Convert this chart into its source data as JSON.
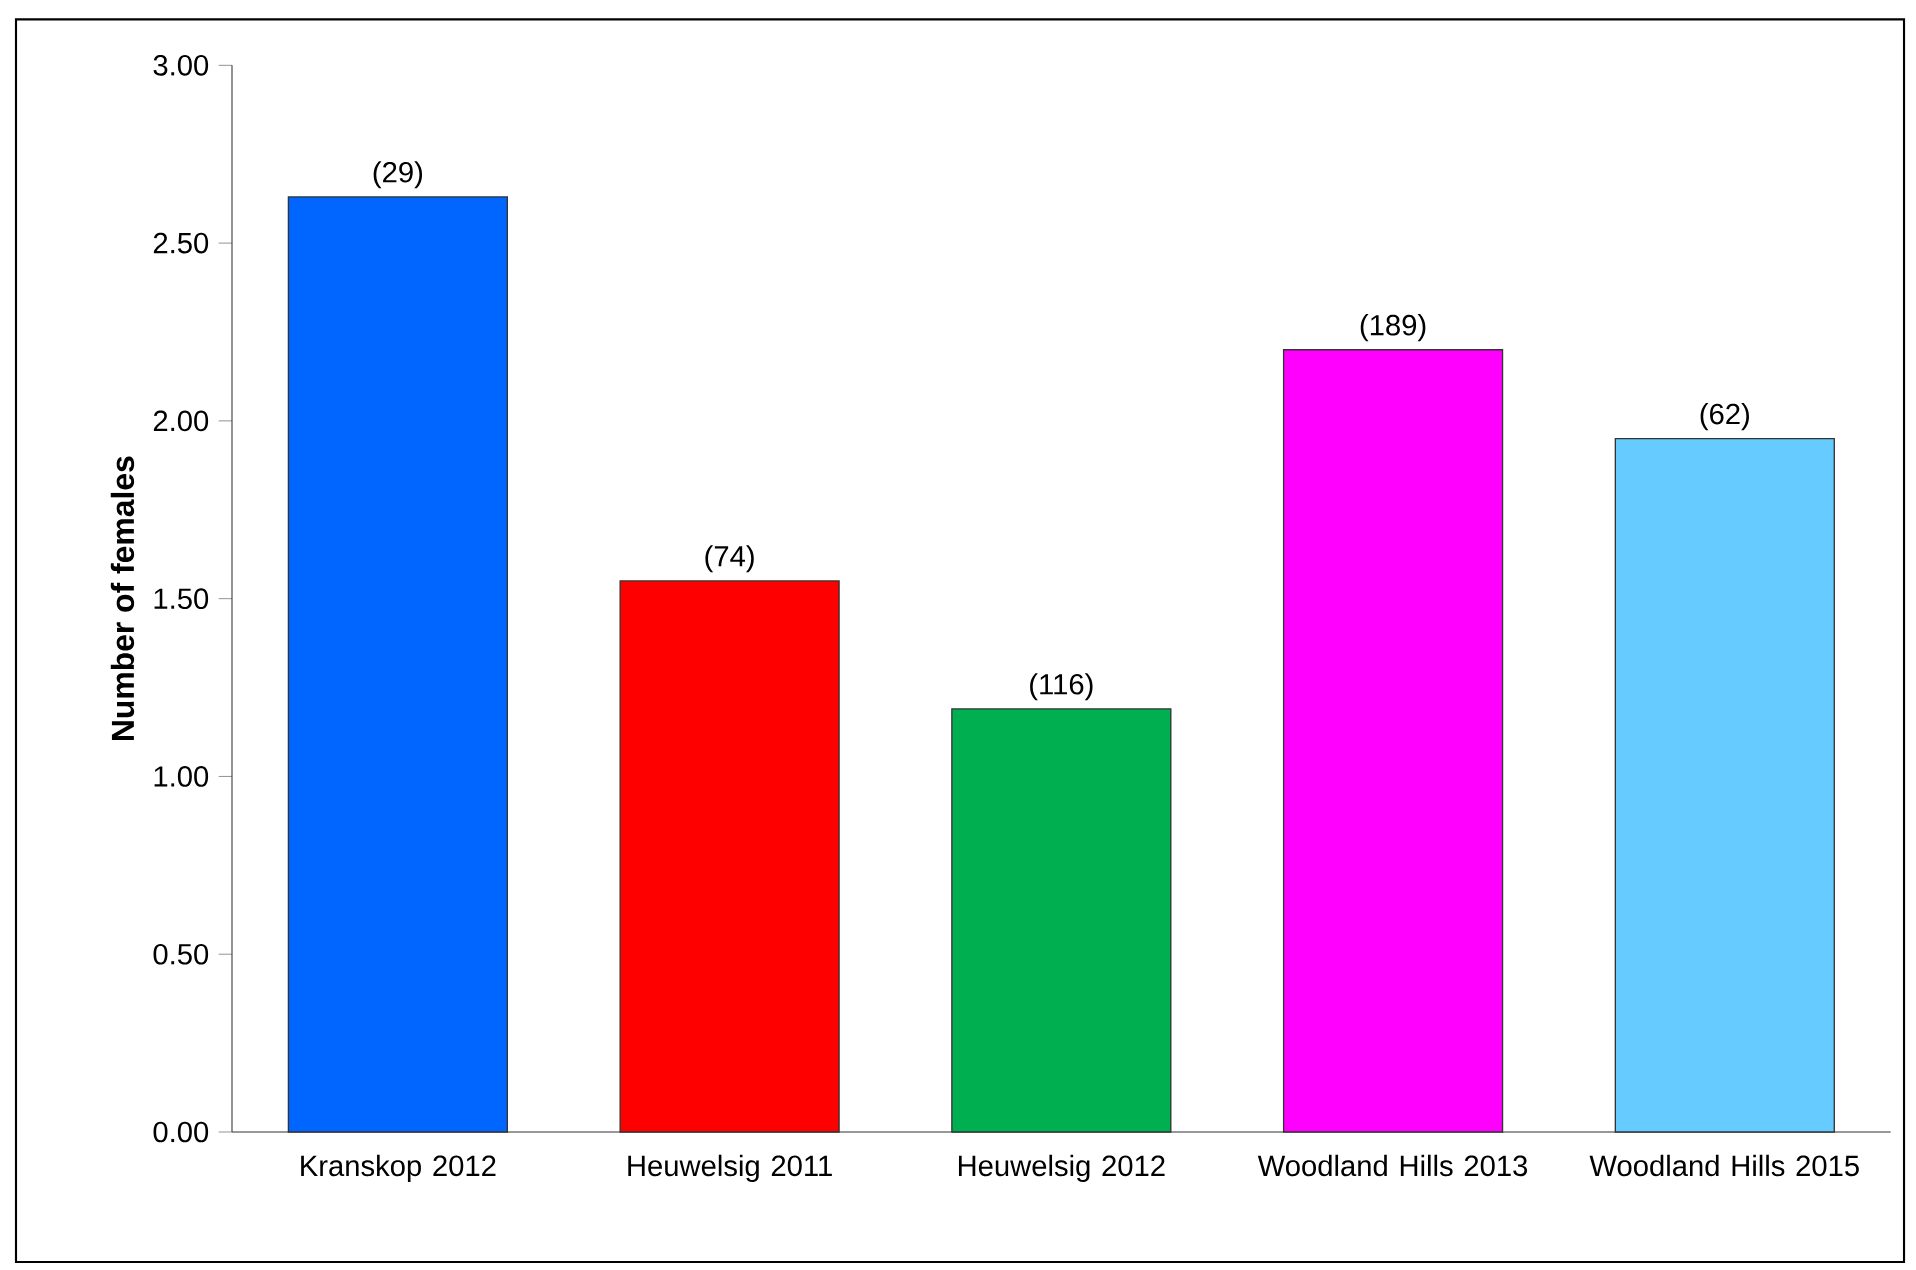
{
  "chart_data": {
    "type": "bar",
    "ylabel": "Number of females",
    "categories": [
      "Kranskop 2012",
      "Heuwelsig 2011",
      "Heuwelsig 2012",
      "Woodland Hills 2013",
      "Woodland Hills 2015"
    ],
    "values": [
      2.63,
      1.55,
      1.19,
      2.2,
      1.95
    ],
    "colors": [
      "#0066ff",
      "#ff0000",
      "#00b050",
      "#ff00ff",
      "#66ccff"
    ],
    "annotations": [
      {
        "text": "(29)",
        "x": "Kranskop 2012",
        "y": 2.63
      },
      {
        "text": "(74)",
        "x": "Heuwelsig 2011",
        "y": 1.55
      },
      {
        "text": "(116)",
        "x": "Heuwelsig 2012",
        "y": 1.19
      },
      {
        "text": "(189)",
        "x": "Woodland Hills 2013",
        "y": 2.2
      },
      {
        "text": "(62)",
        "x": "Woodland Hills 2015",
        "y": 1.95
      }
    ],
    "ylim": [
      0,
      3
    ],
    "yticks": [
      {
        "value": 0,
        "label": "0.00"
      },
      {
        "value": 0.5,
        "label": "0.50"
      },
      {
        "value": 1,
        "label": "1.00"
      },
      {
        "value": 1.5,
        "label": "1.50"
      },
      {
        "value": 2,
        "label": "2.00"
      },
      {
        "value": 2.5,
        "label": "2.50"
      },
      {
        "value": 3,
        "label": "3.00"
      }
    ],
    "grid": false
  }
}
